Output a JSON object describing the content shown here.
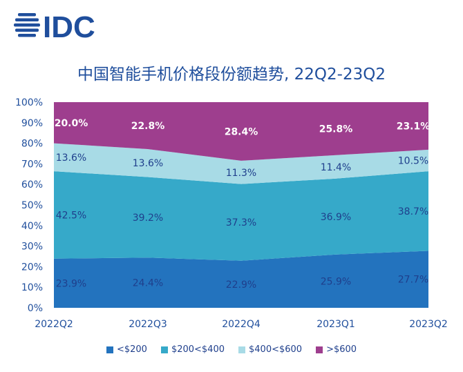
{
  "logo_text": "IDC",
  "chart_data": {
    "type": "area",
    "stacked": true,
    "percent_stacked": true,
    "title": "中国智能手机价格段份额趋势, 22Q2-23Q2",
    "categories": [
      "2022Q2",
      "2022Q3",
      "2022Q4",
      "2023Q1",
      "2023Q2"
    ],
    "series": [
      {
        "name": "<$200",
        "color": "#2373be",
        "values": [
          23.9,
          24.4,
          22.9,
          25.9,
          27.7
        ],
        "labels": [
          "23.9%",
          "24.4%",
          "22.9%",
          "25.9%",
          "27.7%"
        ]
      },
      {
        "name": "$200<$400",
        "color": "#36a9c9",
        "values": [
          42.5,
          39.2,
          37.3,
          36.9,
          38.7
        ],
        "labels": [
          "42.5%",
          "39.2%",
          "37.3%",
          "36.9%",
          "38.7%"
        ]
      },
      {
        "name": "$400<$600",
        "color": "#a8dbe6",
        "values": [
          13.6,
          13.6,
          11.3,
          11.4,
          10.5
        ],
        "labels": [
          "13.6%",
          "13.6%",
          "11.3%",
          "11.4%",
          "10.5%"
        ]
      },
      {
        "name": ">$600",
        "color": "#9e3e8e",
        "values": [
          20.0,
          22.8,
          28.4,
          25.8,
          23.1
        ],
        "labels": [
          "20.0%",
          "22.8%",
          "28.4%",
          "25.8%",
          "23.1%"
        ]
      }
    ],
    "y_ticks": [
      "0%",
      "10%",
      "20%",
      "30%",
      "40%",
      "50%",
      "60%",
      "70%",
      "80%",
      "90%",
      "100%"
    ],
    "ylim": [
      0,
      100
    ],
    "grid": false,
    "legend_position": "bottom"
  }
}
